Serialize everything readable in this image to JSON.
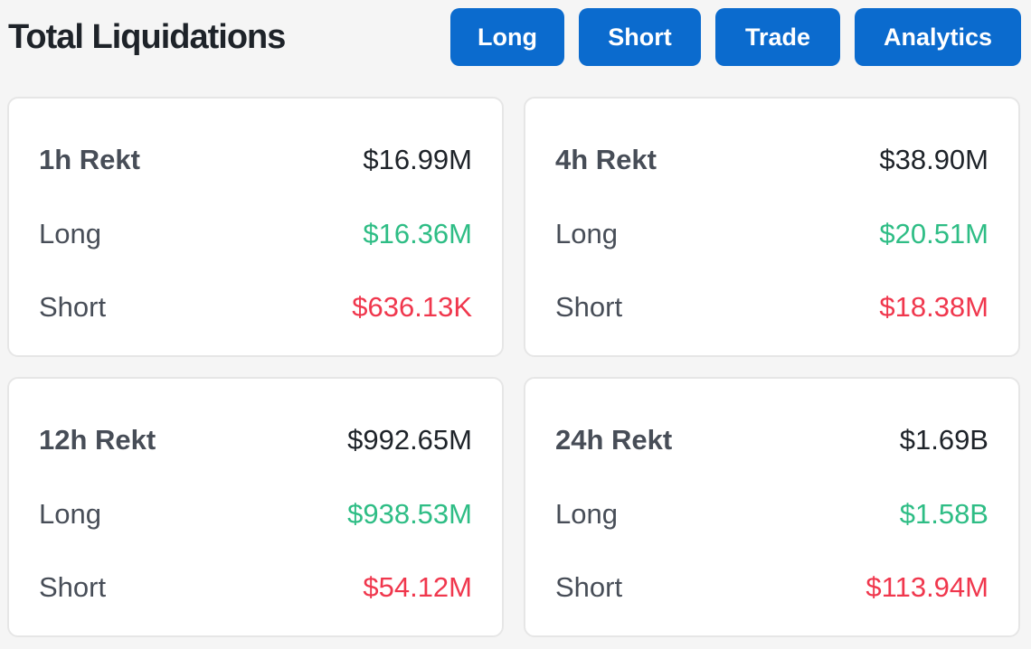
{
  "header": {
    "title": "Total Liquidations",
    "buttons": {
      "long": "Long",
      "short": "Short",
      "trade": "Trade",
      "analytics": "Analytics"
    }
  },
  "colors": {
    "button_bg": "#0b6bce",
    "long_value": "#2ebd85",
    "short_value": "#f0374d",
    "card_bg": "#ffffff",
    "page_bg": "#f5f5f5"
  },
  "cards": {
    "h1": {
      "title": "1h Rekt",
      "total": "$16.99M",
      "long_label": "Long",
      "long_value": "$16.36M",
      "short_label": "Short",
      "short_value": "$636.13K"
    },
    "h4": {
      "title": "4h Rekt",
      "total": "$38.90M",
      "long_label": "Long",
      "long_value": "$20.51M",
      "short_label": "Short",
      "short_value": "$18.38M"
    },
    "h12": {
      "title": "12h Rekt",
      "total": "$992.65M",
      "long_label": "Long",
      "long_value": "$938.53M",
      "short_label": "Short",
      "short_value": "$54.12M"
    },
    "h24": {
      "title": "24h Rekt",
      "total": "$1.69B",
      "long_label": "Long",
      "long_value": "$1.58B",
      "short_label": "Short",
      "short_value": "$113.94M"
    }
  }
}
